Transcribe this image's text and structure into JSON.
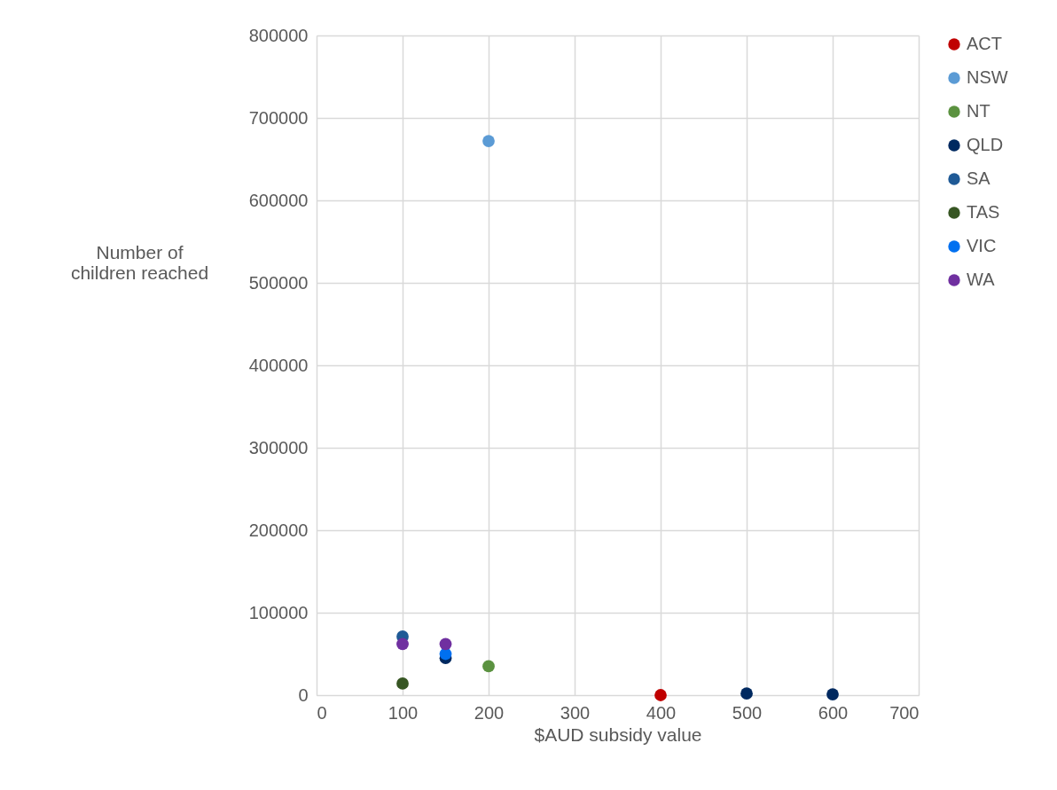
{
  "chart_data": {
    "type": "scatter",
    "xlabel": "$AUD subsidy value",
    "ylabel": "Number of children reached",
    "xlim": [
      0,
      700
    ],
    "xticks": [
      0,
      100,
      200,
      300,
      400,
      500,
      600,
      700
    ],
    "ylim": [
      0,
      800000
    ],
    "yticks": [
      0,
      100000,
      200000,
      300000,
      400000,
      500000,
      600000,
      700000,
      800000
    ],
    "grid": true,
    "legend": "right",
    "marker": "circle",
    "series": [
      {
        "name": "ACT",
        "color": "#c00000",
        "x": [
          400
        ],
        "values": [
          0
        ]
      },
      {
        "name": "NSW",
        "color": "#5b9bd5",
        "x": [
          200
        ],
        "values": [
          672000
        ]
      },
      {
        "name": "NT",
        "color": "#5b9240",
        "x": [
          200
        ],
        "values": [
          35000
        ]
      },
      {
        "name": "QLD",
        "color": "#002960",
        "x": [
          150,
          500,
          600
        ],
        "values": [
          45000,
          2000,
          1000
        ]
      },
      {
        "name": "SA",
        "color": "#1f5a96",
        "x": [
          100
        ],
        "values": [
          71000
        ]
      },
      {
        "name": "TAS",
        "color": "#375623",
        "x": [
          100
        ],
        "values": [
          14000
        ]
      },
      {
        "name": "VIC",
        "color": "#0070f0",
        "x": [
          150
        ],
        "values": [
          50000
        ]
      },
      {
        "name": "WA",
        "color": "#7030a0",
        "x": [
          100,
          150
        ],
        "values": [
          62000,
          62000
        ]
      }
    ]
  }
}
